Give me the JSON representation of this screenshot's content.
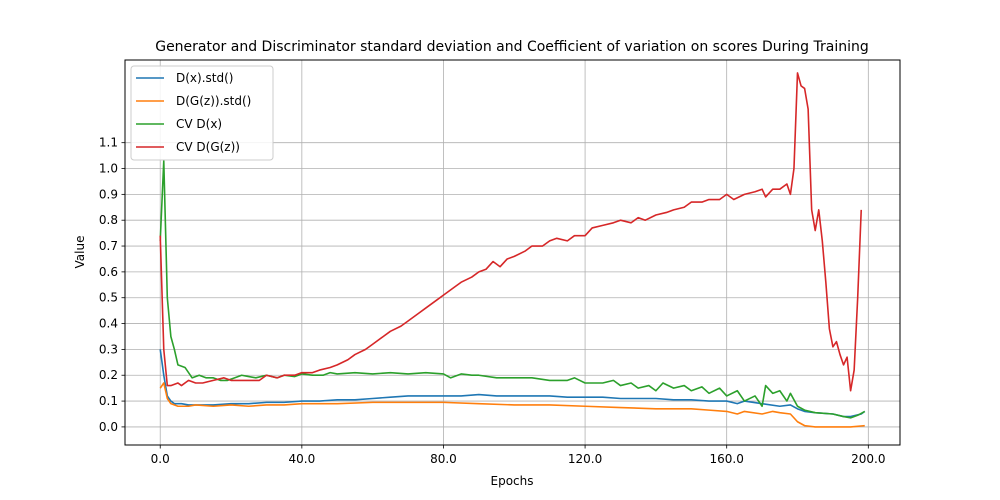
{
  "chart_data": {
    "type": "line",
    "title": "Generator and Discriminator standard deviation and Coefficient of variation on scores During Training",
    "xlabel": "Epochs",
    "ylabel": "Value",
    "xlim": [
      -9.95,
      208.95
    ],
    "ylim": [
      -0.07,
      1.42
    ],
    "xticks": [
      0,
      40,
      80,
      120,
      160,
      200
    ],
    "xtick_labels": [
      "0.0",
      "40.0",
      "80.0",
      "120.0",
      "160.0",
      "200.0"
    ],
    "yticks": [
      0.0,
      0.1,
      0.2,
      0.3,
      0.4,
      0.5,
      0.6,
      0.7,
      0.8,
      0.9,
      1.0,
      1.1
    ],
    "ytick_labels": [
      "0.0",
      "0.1",
      "0.2",
      "0.3",
      "0.4",
      "0.5",
      "0.6",
      "0.7",
      "0.8",
      "0.9",
      "1.0",
      "1.1"
    ],
    "grid": true,
    "legend_position": "top-left",
    "series": [
      {
        "name": "D(x).std()",
        "color": "#1f77b4",
        "points": [
          [
            0,
            0.3
          ],
          [
            1,
            0.2
          ],
          [
            2,
            0.12
          ],
          [
            3,
            0.1
          ],
          [
            4,
            0.09
          ],
          [
            5,
            0.09
          ],
          [
            6,
            0.09
          ],
          [
            8,
            0.085
          ],
          [
            10,
            0.085
          ],
          [
            15,
            0.085
          ],
          [
            20,
            0.09
          ],
          [
            25,
            0.09
          ],
          [
            30,
            0.095
          ],
          [
            35,
            0.095
          ],
          [
            40,
            0.1
          ],
          [
            45,
            0.1
          ],
          [
            50,
            0.105
          ],
          [
            55,
            0.105
          ],
          [
            60,
            0.11
          ],
          [
            65,
            0.115
          ],
          [
            70,
            0.12
          ],
          [
            75,
            0.12
          ],
          [
            80,
            0.12
          ],
          [
            85,
            0.12
          ],
          [
            90,
            0.125
          ],
          [
            95,
            0.12
          ],
          [
            100,
            0.12
          ],
          [
            105,
            0.12
          ],
          [
            110,
            0.12
          ],
          [
            115,
            0.115
          ],
          [
            120,
            0.115
          ],
          [
            125,
            0.115
          ],
          [
            130,
            0.11
          ],
          [
            135,
            0.11
          ],
          [
            140,
            0.11
          ],
          [
            145,
            0.105
          ],
          [
            150,
            0.105
          ],
          [
            155,
            0.1
          ],
          [
            160,
            0.1
          ],
          [
            163,
            0.09
          ],
          [
            165,
            0.1
          ],
          [
            170,
            0.09
          ],
          [
            175,
            0.08
          ],
          [
            178,
            0.085
          ],
          [
            180,
            0.07
          ],
          [
            182,
            0.06
          ],
          [
            185,
            0.055
          ],
          [
            190,
            0.05
          ],
          [
            193,
            0.04
          ],
          [
            195,
            0.04
          ],
          [
            198,
            0.05
          ],
          [
            199,
            0.06
          ]
        ]
      },
      {
        "name": "D(G(z)).std()",
        "color": "#ff7f0e",
        "points": [
          [
            0,
            0.15
          ],
          [
            1,
            0.17
          ],
          [
            2,
            0.11
          ],
          [
            3,
            0.09
          ],
          [
            5,
            0.08
          ],
          [
            8,
            0.08
          ],
          [
            10,
            0.085
          ],
          [
            15,
            0.08
          ],
          [
            20,
            0.085
          ],
          [
            25,
            0.08
          ],
          [
            30,
            0.085
          ],
          [
            35,
            0.085
          ],
          [
            40,
            0.09
          ],
          [
            50,
            0.09
          ],
          [
            60,
            0.095
          ],
          [
            70,
            0.095
          ],
          [
            80,
            0.095
          ],
          [
            90,
            0.09
          ],
          [
            100,
            0.085
          ],
          [
            110,
            0.085
          ],
          [
            120,
            0.08
          ],
          [
            130,
            0.075
          ],
          [
            140,
            0.07
          ],
          [
            150,
            0.07
          ],
          [
            155,
            0.065
          ],
          [
            160,
            0.06
          ],
          [
            163,
            0.05
          ],
          [
            165,
            0.06
          ],
          [
            170,
            0.05
          ],
          [
            173,
            0.06
          ],
          [
            175,
            0.055
          ],
          [
            178,
            0.05
          ],
          [
            180,
            0.02
          ],
          [
            182,
            0.005
          ],
          [
            185,
            0.0
          ],
          [
            190,
            0.0
          ],
          [
            195,
            0.0
          ],
          [
            199,
            0.005
          ]
        ]
      },
      {
        "name": "CV D(x)",
        "color": "#2ca02c",
        "points": [
          [
            0,
            0.72
          ],
          [
            1,
            1.03
          ],
          [
            2,
            0.5
          ],
          [
            3,
            0.35
          ],
          [
            4,
            0.3
          ],
          [
            5,
            0.24
          ],
          [
            7,
            0.23
          ],
          [
            9,
            0.19
          ],
          [
            11,
            0.2
          ],
          [
            13,
            0.19
          ],
          [
            15,
            0.19
          ],
          [
            17,
            0.18
          ],
          [
            19,
            0.18
          ],
          [
            21,
            0.19
          ],
          [
            23,
            0.2
          ],
          [
            25,
            0.195
          ],
          [
            27,
            0.19
          ],
          [
            30,
            0.2
          ],
          [
            33,
            0.19
          ],
          [
            35,
            0.2
          ],
          [
            38,
            0.195
          ],
          [
            40,
            0.205
          ],
          [
            43,
            0.2
          ],
          [
            46,
            0.2
          ],
          [
            48,
            0.21
          ],
          [
            50,
            0.205
          ],
          [
            55,
            0.21
          ],
          [
            60,
            0.205
          ],
          [
            65,
            0.21
          ],
          [
            70,
            0.205
          ],
          [
            75,
            0.21
          ],
          [
            80,
            0.205
          ],
          [
            82,
            0.19
          ],
          [
            85,
            0.205
          ],
          [
            88,
            0.2
          ],
          [
            90,
            0.2
          ],
          [
            95,
            0.19
          ],
          [
            100,
            0.19
          ],
          [
            105,
            0.19
          ],
          [
            110,
            0.18
          ],
          [
            115,
            0.18
          ],
          [
            117,
            0.19
          ],
          [
            120,
            0.17
          ],
          [
            125,
            0.17
          ],
          [
            128,
            0.18
          ],
          [
            130,
            0.16
          ],
          [
            133,
            0.17
          ],
          [
            135,
            0.15
          ],
          [
            138,
            0.16
          ],
          [
            140,
            0.14
          ],
          [
            142,
            0.17
          ],
          [
            145,
            0.15
          ],
          [
            148,
            0.16
          ],
          [
            150,
            0.14
          ],
          [
            153,
            0.155
          ],
          [
            155,
            0.13
          ],
          [
            158,
            0.15
          ],
          [
            160,
            0.12
          ],
          [
            163,
            0.14
          ],
          [
            165,
            0.1
          ],
          [
            168,
            0.12
          ],
          [
            170,
            0.08
          ],
          [
            171,
            0.16
          ],
          [
            173,
            0.13
          ],
          [
            175,
            0.14
          ],
          [
            177,
            0.1
          ],
          [
            178,
            0.13
          ],
          [
            180,
            0.08
          ],
          [
            182,
            0.065
          ],
          [
            185,
            0.055
          ],
          [
            190,
            0.05
          ],
          [
            193,
            0.04
          ],
          [
            195,
            0.035
          ],
          [
            197,
            0.045
          ],
          [
            199,
            0.06
          ]
        ]
      },
      {
        "name": "CV D(G(z))",
        "color": "#d62728",
        "points": [
          [
            0,
            0.74
          ],
          [
            1,
            0.3
          ],
          [
            2,
            0.16
          ],
          [
            3,
            0.16
          ],
          [
            5,
            0.17
          ],
          [
            6,
            0.16
          ],
          [
            8,
            0.18
          ],
          [
            10,
            0.17
          ],
          [
            12,
            0.17
          ],
          [
            15,
            0.18
          ],
          [
            18,
            0.19
          ],
          [
            20,
            0.18
          ],
          [
            23,
            0.18
          ],
          [
            25,
            0.18
          ],
          [
            28,
            0.18
          ],
          [
            30,
            0.2
          ],
          [
            33,
            0.19
          ],
          [
            35,
            0.2
          ],
          [
            38,
            0.2
          ],
          [
            40,
            0.21
          ],
          [
            43,
            0.21
          ],
          [
            45,
            0.22
          ],
          [
            48,
            0.23
          ],
          [
            50,
            0.24
          ],
          [
            53,
            0.26
          ],
          [
            55,
            0.28
          ],
          [
            58,
            0.3
          ],
          [
            60,
            0.32
          ],
          [
            63,
            0.35
          ],
          [
            65,
            0.37
          ],
          [
            68,
            0.39
          ],
          [
            70,
            0.41
          ],
          [
            73,
            0.44
          ],
          [
            75,
            0.46
          ],
          [
            78,
            0.49
          ],
          [
            80,
            0.51
          ],
          [
            83,
            0.54
          ],
          [
            85,
            0.56
          ],
          [
            88,
            0.58
          ],
          [
            90,
            0.6
          ],
          [
            92,
            0.61
          ],
          [
            94,
            0.64
          ],
          [
            96,
            0.62
          ],
          [
            98,
            0.65
          ],
          [
            100,
            0.66
          ],
          [
            103,
            0.68
          ],
          [
            105,
            0.7
          ],
          [
            108,
            0.7
          ],
          [
            110,
            0.72
          ],
          [
            112,
            0.73
          ],
          [
            115,
            0.72
          ],
          [
            117,
            0.74
          ],
          [
            120,
            0.74
          ],
          [
            122,
            0.77
          ],
          [
            125,
            0.78
          ],
          [
            128,
            0.79
          ],
          [
            130,
            0.8
          ],
          [
            133,
            0.79
          ],
          [
            135,
            0.81
          ],
          [
            137,
            0.8
          ],
          [
            140,
            0.82
          ],
          [
            143,
            0.83
          ],
          [
            145,
            0.84
          ],
          [
            148,
            0.85
          ],
          [
            150,
            0.87
          ],
          [
            153,
            0.87
          ],
          [
            155,
            0.88
          ],
          [
            158,
            0.88
          ],
          [
            160,
            0.9
          ],
          [
            162,
            0.88
          ],
          [
            165,
            0.9
          ],
          [
            168,
            0.91
          ],
          [
            170,
            0.92
          ],
          [
            171,
            0.89
          ],
          [
            173,
            0.92
          ],
          [
            175,
            0.92
          ],
          [
            177,
            0.94
          ],
          [
            178,
            0.9
          ],
          [
            179,
            1.0
          ],
          [
            180,
            1.37
          ],
          [
            181,
            1.32
          ],
          [
            182,
            1.31
          ],
          [
            183,
            1.23
          ],
          [
            184,
            0.84
          ],
          [
            185,
            0.76
          ],
          [
            186,
            0.84
          ],
          [
            187,
            0.72
          ],
          [
            188,
            0.56
          ],
          [
            189,
            0.38
          ],
          [
            190,
            0.31
          ],
          [
            191,
            0.33
          ],
          [
            192,
            0.28
          ],
          [
            193,
            0.24
          ],
          [
            194,
            0.27
          ],
          [
            195,
            0.14
          ],
          [
            196,
            0.22
          ],
          [
            197,
            0.5
          ],
          [
            198,
            0.84
          ]
        ]
      }
    ]
  }
}
